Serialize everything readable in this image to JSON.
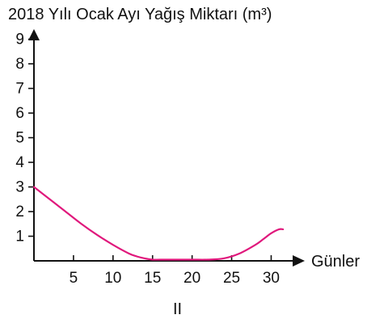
{
  "chart_data": {
    "type": "line",
    "title": "2018 Yılı Ocak Ayı Yağış Miktarı (m³)",
    "xlabel": "Günler",
    "ylabel": "",
    "xlim": [
      0,
      32
    ],
    "ylim": [
      0,
      10
    ],
    "xticks": [
      "5",
      "10",
      "15",
      "20",
      "25",
      "30"
    ],
    "yticks": [
      "1",
      "2",
      "3",
      "4",
      "5",
      "6",
      "7",
      "8",
      "9"
    ],
    "grid": false,
    "series": [
      {
        "color": "#e0187c",
        "x": [
          0,
          2,
          4,
          6,
          8,
          10,
          12,
          13,
          14,
          15,
          16,
          18,
          20,
          22,
          24,
          26,
          28,
          29,
          30,
          31,
          31.5
        ],
        "y": [
          3.0,
          2.5,
          2.0,
          1.5,
          1.05,
          0.65,
          0.3,
          0.18,
          0.1,
          0.05,
          0.05,
          0.05,
          0.05,
          0.05,
          0.1,
          0.3,
          0.65,
          0.88,
          1.12,
          1.28,
          1.28
        ]
      }
    ]
  },
  "figure_label": "II"
}
